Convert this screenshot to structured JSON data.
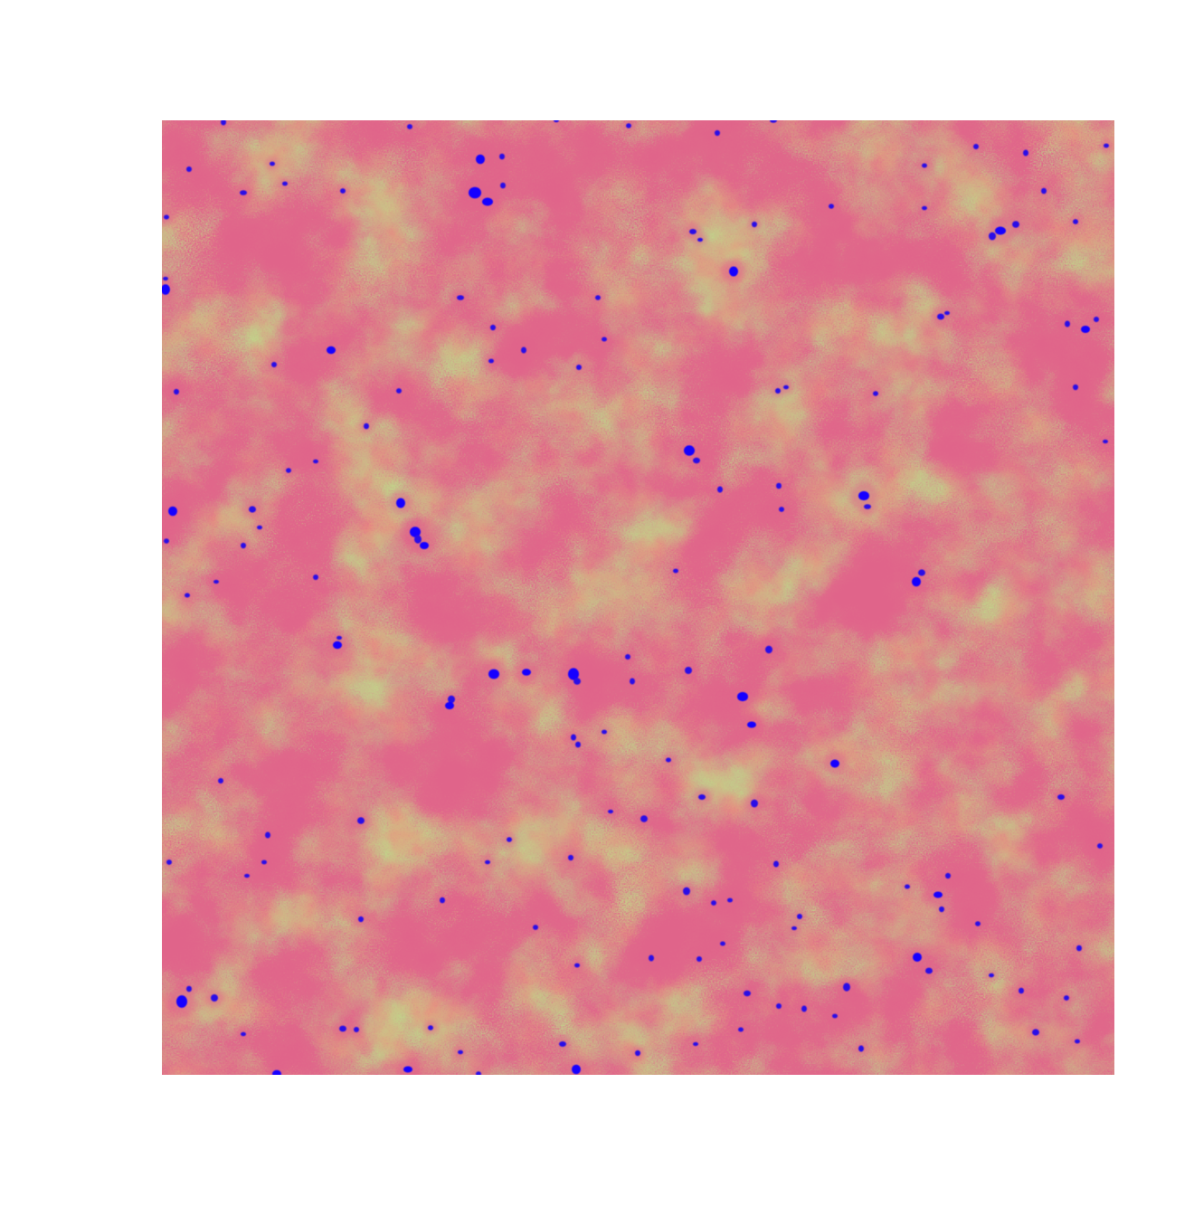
{
  "image": {
    "colors": {
      "background": "#ffffff",
      "low_density": "#c2d48a",
      "mid_density": "#e79a7e",
      "high_density": "#e0648a",
      "peak_density": "#2a10e6",
      "knot_core": "#1400ff"
    },
    "color_ramp": [
      "#c2d48a",
      "#d6b880",
      "#e79a7e",
      "#e0648a",
      "#b03cb0",
      "#2a10e6"
    ]
  }
}
